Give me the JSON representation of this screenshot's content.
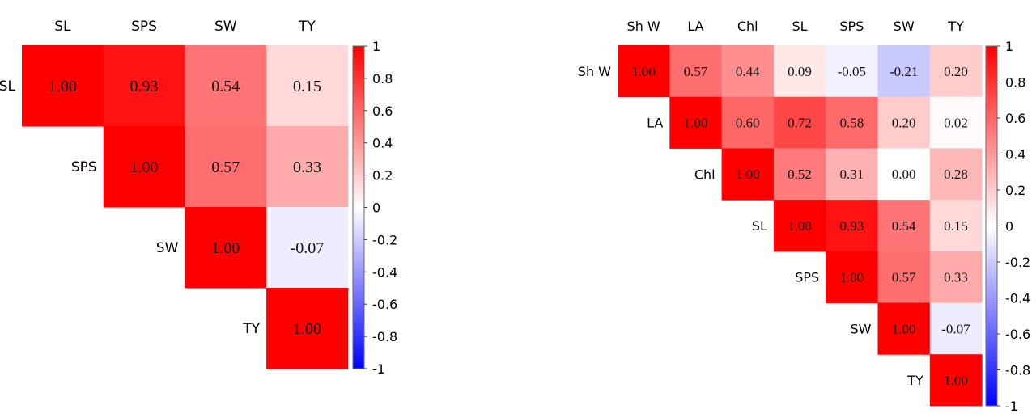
{
  "chart_data": [
    {
      "type": "heatmap",
      "variables": [
        "SL",
        "SPS",
        "SW",
        "TY"
      ],
      "triangle": "upper",
      "matrix": [
        [
          1.0,
          0.93,
          0.54,
          0.15
        ],
        [
          null,
          1.0,
          0.57,
          0.33
        ],
        [
          null,
          null,
          1.0,
          -0.07
        ],
        [
          null,
          null,
          null,
          1.0
        ]
      ],
      "colorbar": {
        "range": [
          -1,
          1
        ],
        "ticks": [
          "1",
          "0.8",
          "0.6",
          "0.4",
          "0.2",
          "0",
          "-0.2",
          "-0.4",
          "-0.6",
          "-0.8",
          "-1"
        ],
        "low_color": "#0000ff",
        "mid_color": "#ffffff",
        "high_color": "#ff0000"
      }
    },
    {
      "type": "heatmap",
      "variables": [
        "Sh W",
        "LA",
        "Chl",
        "SL",
        "SPS",
        "SW",
        "TY"
      ],
      "triangle": "upper",
      "matrix": [
        [
          1.0,
          0.57,
          0.44,
          0.09,
          -0.05,
          -0.21,
          0.2
        ],
        [
          null,
          1.0,
          0.6,
          0.72,
          0.58,
          0.2,
          0.02
        ],
        [
          null,
          null,
          1.0,
          0.52,
          0.31,
          0.0,
          0.28
        ],
        [
          null,
          null,
          null,
          1.0,
          0.93,
          0.54,
          0.15
        ],
        [
          null,
          null,
          null,
          null,
          1.0,
          0.57,
          0.33
        ],
        [
          null,
          null,
          null,
          null,
          null,
          1.0,
          -0.07
        ],
        [
          null,
          null,
          null,
          null,
          null,
          null,
          1.0
        ]
      ],
      "colorbar": {
        "range": [
          -1,
          1
        ],
        "ticks": [
          "1",
          "0.8",
          "0.6",
          "0.4",
          "0.2",
          "0",
          "-0.2",
          "-0.4",
          "-0.6",
          "-0.8",
          "-1"
        ],
        "low_color": "#0000ff",
        "mid_color": "#ffffff",
        "high_color": "#ff0000"
      }
    }
  ]
}
